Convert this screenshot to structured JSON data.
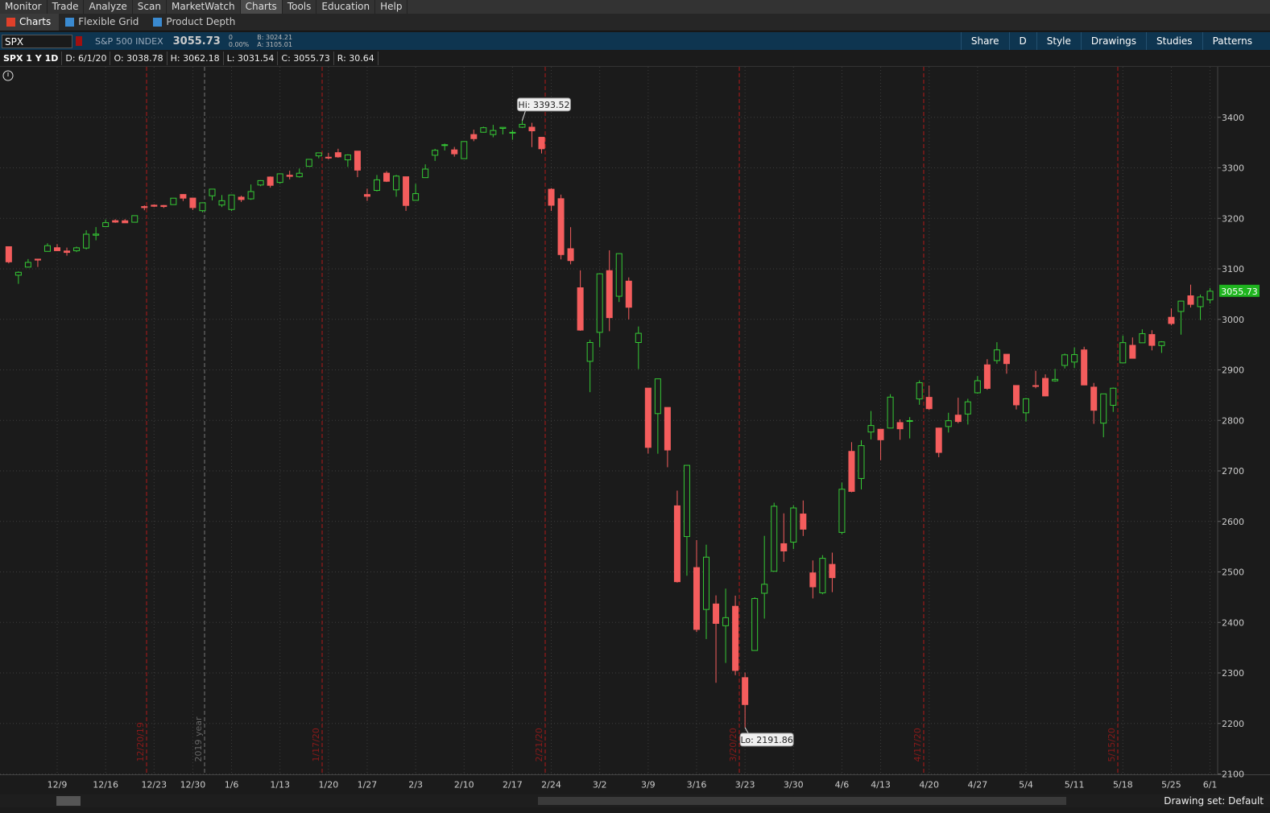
{
  "menu": [
    "Monitor",
    "Trade",
    "Analyze",
    "Scan",
    "MarketWatch",
    "Charts",
    "Tools",
    "Education",
    "Help"
  ],
  "active_menu": "Charts",
  "tabs": [
    "Charts",
    "Flexible Grid",
    "Product Depth"
  ],
  "symbol_bar": {
    "symbol": "SPX",
    "description": "S&P 500 INDEX",
    "last": "3055.73",
    "change": "0",
    "change_pct": "0.00%",
    "bid": "B: 3024.21",
    "ask": "A: 3105.01",
    "buttons": [
      "Share",
      "D",
      "Style",
      "Drawings",
      "Studies",
      "Patterns"
    ]
  },
  "info_bar": {
    "title": "SPX 1 Y 1D",
    "fields": [
      "D: 6/1/20",
      "O: 3038.78",
      "H: 3062.18",
      "L: 3031.54",
      "C: 3055.73",
      "R: 30.64"
    ]
  },
  "footer": {
    "drawing_set": "Drawing set: Default"
  },
  "chart_data": {
    "type": "candlestick",
    "categories": [
      null,
      null,
      null,
      null,
      null,
      "12/9",
      null,
      null,
      null,
      null,
      "12/16",
      null,
      null,
      null,
      null,
      "12/23",
      null,
      null,
      null,
      "12/30",
      null,
      null,
      null,
      "1/6",
      null,
      null,
      null,
      null,
      "1/13",
      null,
      null,
      null,
      null,
      "1/20",
      null,
      null,
      null,
      "1/27",
      null,
      null,
      null,
      null,
      "2/3",
      null,
      null,
      null,
      null,
      "2/10",
      null,
      null,
      null,
      null,
      "2/17",
      null,
      null,
      null,
      "2/24",
      null,
      null,
      null,
      null,
      "3/2",
      null,
      null,
      null,
      null,
      "3/9",
      null,
      null,
      null,
      null,
      "3/16",
      null,
      null,
      null,
      null,
      "3/23",
      null,
      null,
      null,
      null,
      "3/30",
      null,
      null,
      null,
      null,
      "4/6",
      null,
      null,
      null,
      "4/13",
      null,
      null,
      null,
      null,
      "4/20",
      null,
      null,
      null,
      null,
      "4/27",
      null,
      null,
      null,
      null,
      "5/4",
      null,
      null,
      null,
      null,
      "5/11",
      null,
      null,
      null,
      null,
      "5/18",
      null,
      null,
      null,
      null,
      "5/25",
      null,
      null,
      null,
      "6/1"
    ],
    "open": [
      3143.85,
      3087.41,
      3103.5,
      3119.21,
      3134.62,
      3141.86,
      3135.36,
      3135.75,
      3141.23,
      3166.65,
      3183.63,
      3195.4,
      3195.21,
      3192.32,
      3223.33,
      3226.05,
      3225.45,
      3227.2,
      3247.23,
      3240.09,
      3215.18,
      3244.67,
      3226.36,
      3217.55,
      3241.86,
      3238.59,
      3266.03,
      3281.81,
      3271.13,
      3285.35,
      3282.27,
      3302.97,
      3323.66,
      3321.03,
      3330.02,
      3315.77,
      3333.1,
      3247.16,
      3255.35,
      3289.46,
      3256.45,
      3282.33,
      3235.66,
      3280.61,
      3324.91,
      3344.92,
      3335.54,
      3318.28,
      3365.87,
      3370.5,
      3365.9,
      3378.08,
      3369.04,
      3380.39,
      3380.45,
      3360.5,
      3257.61,
      3238.94,
      3139.9,
      3062.54,
      2916.9,
      2974.28,
      3096.46,
      3045.75,
      3075.7,
      2954.2,
      2863.89,
      2813.48,
      2825.6,
      2630.86,
      2569.99,
      2508.59,
      2425.66,
      2436.5,
      2393.48,
      2431.94,
      2290.71,
      2344.44,
      2457.77,
      2501.29,
      2555.87,
      2558.98,
      2614.69,
      2498.08,
      2458.54,
      2514.92,
      2578.28,
      2738.65,
      2685,
      2776.99,
      2782.46,
      2784.81,
      2795.64,
      2799.34,
      2842.43,
      2845.62,
      2784.81,
      2787.89,
      2810.42,
      2812.64,
      2854.65,
      2909.96,
      2918.46,
      2930.91,
      2869.09,
      2815.01,
      2868.88,
      2883.14,
      2878.26,
      2908.83,
      2915.46,
      2939.5,
      2865.86,
      2794.54,
      2829.95,
      2913.86,
      2948.59,
      2953.63,
      2969.95,
      2948.05,
      3004.08,
      3015.65,
      3046.61,
      3025.17,
      3038.78
    ],
    "high": [
      3144.31,
      3094.97,
      3119.38,
      3119.45,
      3150.6,
      3148.87,
      3142.12,
      3143.98,
      3176.28,
      3182.68,
      3197.71,
      3198.22,
      3198.48,
      3205.48,
      3225.65,
      3227.78,
      3226.43,
      3240.08,
      3247.93,
      3240.92,
      3231.72,
      3258.14,
      3246.15,
      3246.84,
      3244.91,
      3267.07,
      3275.58,
      3282.99,
      3288.13,
      3294.25,
      3298.66,
      3317.11,
      3329.88,
      3329.79,
      3337.77,
      3326.88,
      3333.18,
      3258.85,
      3285.78,
      3293.47,
      3285.91,
      3282.33,
      3268.44,
      3306.92,
      3337.58,
      3347.96,
      3341.42,
      3352.26,
      3375.63,
      3381.47,
      3385.09,
      3380.69,
      3375.01,
      3393.52,
      3389.15,
      3360.76,
      3259.81,
      3246.99,
      3182.51,
      3097.07,
      2959.72,
      3090.96,
      3136.72,
      3130.97,
      3083.04,
      2985.93,
      2863.89,
      2882.59,
      2825.6,
      2660.95,
      2711.33,
      2562.98,
      2553.93,
      2453.57,
      2466.97,
      2453.01,
      2300.73,
      2449.71,
      2571.42,
      2637.01,
      2615.91,
      2631.8,
      2641.39,
      2522.75,
      2533.22,
      2538.18,
      2676.85,
      2756.89,
      2760.75,
      2818.57,
      2782.46,
      2851.85,
      2801.88,
      2806.51,
      2879.22,
      2868.98,
      2785.54,
      2815.1,
      2844.9,
      2842.71,
      2887.72,
      2921.15,
      2954.86,
      2930.91,
      2869.09,
      2844.24,
      2898.23,
      2891.11,
      2901.92,
      2932.16,
      2944.25,
      2945.82,
      2874.14,
      2852.8,
      2865.01,
      2968.09,
      2964.21,
      2980.29,
      2978.5,
      2956.76,
      3021.72,
      3036.25,
      3068.67,
      3049.17,
      3062.18
    ],
    "low": [
      3110.78,
      3070.33,
      3102.53,
      3103.76,
      3134.62,
      3135.46,
      3126.09,
      3133.21,
      3138.47,
      3156.51,
      3183.63,
      3191.03,
      3191.14,
      3192.32,
      3216.03,
      3222.3,
      3220.51,
      3227.2,
      3234.37,
      3216.57,
      3212.03,
      3235.53,
      3222.34,
      3214.64,
      3232.43,
      3236.67,
      3263.67,
      3260.86,
      3268.43,
      3277.19,
      3280.69,
      3302.82,
      3318.86,
      3316.61,
      3320.04,
      3301.87,
      3281.53,
      3234.5,
      3253.22,
      3271.89,
      3242.8,
      3214.68,
      3235.66,
      3280.61,
      3313.75,
      3334.39,
      3322.12,
      3317.77,
      3352.72,
      3369.72,
      3360.52,
      3366.15,
      3355.61,
      3378.83,
      3341.02,
      3328.45,
      3214.65,
      3118.77,
      3108.99,
      2977.39,
      2855.84,
      2945.19,
      2976.63,
      3034.38,
      2999.83,
      2901.54,
      2734.43,
      2734,
      2707.22,
      2478.86,
      2492.37,
      2380.94,
      2367.04,
      2280.52,
      2319.78,
      2295.56,
      2191.86,
      2344.44,
      2407.53,
      2500.72,
      2520.02,
      2545.28,
      2571.15,
      2447.49,
      2455.79,
      2459.96,
      2574.57,
      2657.67,
      2663.3,
      2762.36,
      2721.17,
      2784.81,
      2761.54,
      2764.32,
      2830.88,
      2820.43,
      2727.1,
      2775.95,
      2794.26,
      2791.76,
      2852.89,
      2860.71,
      2912.16,
      2892.47,
      2821.61,
      2797.85,
      2863.55,
      2847.65,
      2876.48,
      2902.88,
      2903.44,
      2869.59,
      2793.15,
      2766.64,
      2816.78,
      2913.86,
      2922.35,
      2953.63,
      2938.57,
      2933.59,
      2988.17,
      2969.75,
      3023.4,
      2998.61,
      3031.54
    ],
    "close": [
      3113.87,
      3093.2,
      3112.76,
      3117.43,
      3145.91,
      3135.96,
      3132.52,
      3141.63,
      3168.57,
      3168.8,
      3191.45,
      3192.52,
      3191.14,
      3205.37,
      3221.22,
      3224.01,
      3223.38,
      3239.91,
      3240.02,
      3221.29,
      3230.78,
      3257.85,
      3234.85,
      3246.28,
      3237.18,
      3253.05,
      3274.7,
      3265.35,
      3288.13,
      3283.15,
      3289.29,
      3316.81,
      3329.62,
      3320.79,
      3321.75,
      3325.54,
      3295.47,
      3243.63,
      3276.24,
      3273.4,
      3283.66,
      3225.52,
      3248.92,
      3297.59,
      3334.69,
      3345.78,
      3327.71,
      3352.09,
      3357.75,
      3379.45,
      3373.94,
      3380.16,
      3370.29,
      3386.15,
      3373.23,
      3337.75,
      3225.89,
      3128.21,
      3116.39,
      2978.76,
      2954.22,
      3090.23,
      3003.37,
      3130.12,
      3023.94,
      2972.37,
      2746.56,
      2882.23,
      2741.38,
      2480.64,
      2711.02,
      2386.13,
      2529.19,
      2398.1,
      2409.39,
      2304.92,
      2237.4,
      2447.33,
      2475.56,
      2630.07,
      2541.47,
      2626.65,
      2584.59,
      2470.5,
      2526.9,
      2488.65,
      2663.68,
      2659.41,
      2749.98,
      2789.82,
      2761.63,
      2846.06,
      2783.36,
      2799.55,
      2874.56,
      2823.16,
      2736.56,
      2799.31,
      2797.8,
      2836.74,
      2878.48,
      2863.39,
      2939.51,
      2912.43,
      2830.71,
      2842.74,
      2868.44,
      2848.42,
      2881.19,
      2929.8,
      2930.19,
      2870.12,
      2820,
      2852.5,
      2863.7,
      2953.91,
      2922.94,
      2971.61,
      2948.51,
      2955.45,
      2991.77,
      3036.13,
      3029.73,
      3044.31,
      3055.73
    ],
    "up_color": "#35c935",
    "down_color": "#f45d5d",
    "ylim": [
      2100,
      3500
    ],
    "yticks": [
      2100,
      2200,
      2300,
      2400,
      2500,
      2600,
      2700,
      2800,
      2900,
      3000,
      3100,
      3200,
      3300,
      3400
    ],
    "grid": true,
    "events": [
      "12/20/19",
      "2019 year",
      "1/17/20",
      "2/21/20",
      "3/20/20",
      "4/17/20",
      "5/15/20"
    ],
    "annotations": [
      {
        "text": "Hi: 3393.52",
        "value": 3393.52,
        "at": "high"
      },
      {
        "text": "Lo: 2191.86",
        "value": 2191.86,
        "at": "low"
      }
    ],
    "last_price": 3055.73
  }
}
